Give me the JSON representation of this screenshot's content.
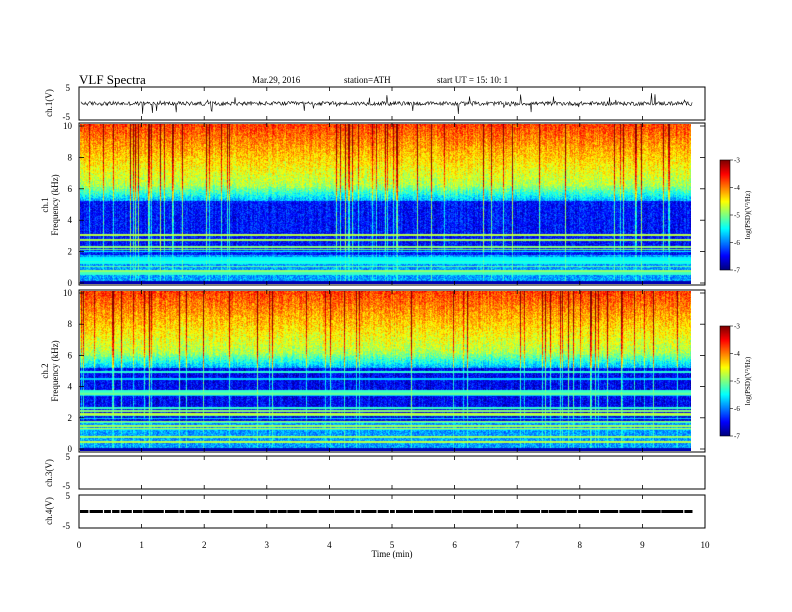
{
  "header": {
    "title": "VLF  Spectra",
    "date": "Mar.29, 2016",
    "station": "station=ATH",
    "start": "start  UT  =    15: 10: 1"
  },
  "chart_data": [
    {
      "type": "line",
      "ylabel": "ch.1(V)",
      "ylim": [
        -5,
        5
      ],
      "yticks": [
        "5",
        "-5"
      ],
      "xlim": [
        0,
        10
      ],
      "baseline": 0
    },
    {
      "type": "heatmap",
      "ylabel_top": "ch.1",
      "ylabel": "Frequency  (kHz)",
      "ylim": [
        0,
        10
      ],
      "yticks": [
        "0",
        "2",
        "4",
        "6",
        "8",
        "10"
      ],
      "xlim": [
        0,
        10
      ],
      "colorbar": {
        "label": "log(PSD)(V²/Hz)",
        "ticks": [
          "-7",
          "-6",
          "-5",
          "-4",
          "-3"
        ],
        "range": [
          -7,
          -3
        ]
      }
    },
    {
      "type": "heatmap",
      "ylabel_top": "ch.2",
      "ylabel": "Frequency  (kHz)",
      "ylim": [
        0,
        10
      ],
      "yticks": [
        "0",
        "2",
        "4",
        "6",
        "8",
        "10"
      ],
      "xlim": [
        0,
        10
      ],
      "colorbar": {
        "label": "log(PSD)(V²/Hz)",
        "ticks": [
          "-7",
          "-6",
          "-5",
          "-4",
          "-3"
        ],
        "range": [
          -7,
          -3
        ]
      }
    },
    {
      "type": "line",
      "ylabel": "ch.3(V)",
      "ylim": [
        -5,
        5
      ],
      "yticks": [
        "5",
        "-5"
      ],
      "xlim": [
        0,
        10
      ]
    },
    {
      "type": "line",
      "ylabel": "ch.4(V)",
      "ylim": [
        -5,
        5
      ],
      "yticks": [
        "5",
        "-5"
      ],
      "xlim": [
        0,
        10
      ],
      "baseline": 0
    }
  ],
  "xaxis": {
    "label": "Time  (min)",
    "ticks": [
      "0",
      "1",
      "2",
      "3",
      "4",
      "5",
      "6",
      "7",
      "8",
      "9",
      "10"
    ],
    "data_end": 9.8
  },
  "colors": {
    "jet_low": "#00008f",
    "jet_high": "#800000"
  }
}
